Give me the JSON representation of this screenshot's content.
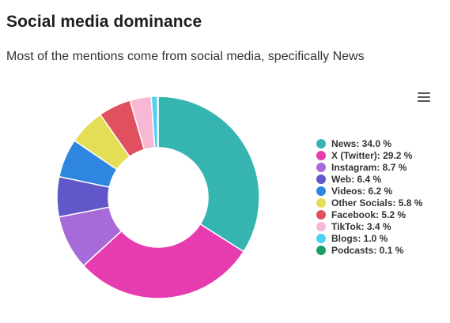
{
  "header": {
    "title": "Social media dominance",
    "subtitle": "Most of the mentions come from social media, specifically News"
  },
  "menu": {
    "icon": "hamburger-menu-icon"
  },
  "chart_data": {
    "type": "pie",
    "variant": "donut",
    "title": "Social media dominance",
    "subtitle": "Most of the mentions come from social media, specifically News",
    "legend_position": "right",
    "unit": "%",
    "categories": [
      "News",
      "X (Twitter)",
      "Instagram",
      "Web",
      "Videos",
      "Other Socials",
      "Facebook",
      "TikTok",
      "Blogs",
      "Podcasts"
    ],
    "values": [
      34.0,
      29.2,
      8.7,
      6.4,
      6.2,
      5.8,
      5.2,
      3.4,
      1.0,
      0.1
    ],
    "colors": [
      "#36b5b0",
      "#e63cb0",
      "#a86ad8",
      "#6157c8",
      "#2e86e0",
      "#e3de55",
      "#e0505e",
      "#f7b8d6",
      "#4dd3f2",
      "#1da064"
    ],
    "legend_labels": [
      "News: 34.0 %",
      "X (Twitter): 29.2 %",
      "Instagram: 8.7 %",
      "Web: 6.4 %",
      "Videos: 6.2 %",
      "Other Socials: 5.8 %",
      "Facebook: 5.2 %",
      "TikTok: 3.4 %",
      "Blogs: 1.0 %",
      "Podcasts: 0.1 %"
    ]
  }
}
